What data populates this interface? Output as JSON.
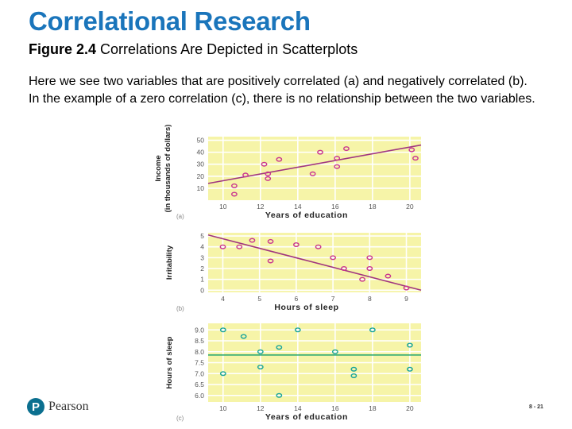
{
  "slide": {
    "title": "Correlational Research",
    "figure_label": "Figure 2.4",
    "figure_caption": "Correlations Are Depicted in Scatterplots",
    "description": "Here we see two variables that are positively correlated (a) and negatively correlated (b). In the example of a zero correlation (c), there is no relationship between the two variables.",
    "logo_text": "Pearson",
    "slide_number": "8 - 21"
  },
  "colors": {
    "title": "#1a75bb",
    "plot_bg": "#f6f4a8",
    "grid": "#ffffff",
    "marker_magenta": "#c9358f",
    "trend_magenta": "#a0357f",
    "marker_teal": "#1aa49b",
    "trend_green": "#1fa56f"
  },
  "chart_data": [
    {
      "type": "scatter",
      "panel_label": "(a)",
      "xlabel": "Years of education",
      "ylabel": "Income",
      "ylabel_sub": "(in thousands of dollars)",
      "xticks": [
        10,
        12,
        14,
        16,
        18,
        20
      ],
      "yticks": [
        10,
        20,
        30,
        40,
        50
      ],
      "xlim": [
        9.2,
        20.6
      ],
      "ylim": [
        0,
        53
      ],
      "points": [
        {
          "x": 10.6,
          "y": 5
        },
        {
          "x": 10.6,
          "y": 12
        },
        {
          "x": 11.2,
          "y": 21
        },
        {
          "x": 12.2,
          "y": 30
        },
        {
          "x": 12.4,
          "y": 22
        },
        {
          "x": 12.4,
          "y": 18
        },
        {
          "x": 13,
          "y": 34
        },
        {
          "x": 14.8,
          "y": 22
        },
        {
          "x": 15.2,
          "y": 40
        },
        {
          "x": 16.1,
          "y": 35
        },
        {
          "x": 16.1,
          "y": 28
        },
        {
          "x": 16.6,
          "y": 43
        },
        {
          "x": 20.1,
          "y": 42
        },
        {
          "x": 20.3,
          "y": 35
        }
      ],
      "trend": [
        [
          9.2,
          14
        ],
        [
          20.6,
          46
        ]
      ],
      "marker_color": "#c9358f",
      "trend_color": "#a0357f",
      "grid": true
    },
    {
      "type": "scatter",
      "panel_label": "(b)",
      "xlabel": "Hours of sleep",
      "ylabel": "Irritability",
      "xticks": [
        4,
        5,
        6,
        7,
        8,
        9
      ],
      "yticks": [
        0,
        1,
        2,
        3,
        4,
        5
      ],
      "xlim": [
        3.6,
        9.4
      ],
      "ylim": [
        -0.2,
        5.3
      ],
      "points": [
        {
          "x": 4,
          "y": 4
        },
        {
          "x": 4.45,
          "y": 4
        },
        {
          "x": 4.8,
          "y": 4.6
        },
        {
          "x": 5.3,
          "y": 4.5
        },
        {
          "x": 5.3,
          "y": 2.7
        },
        {
          "x": 6,
          "y": 4.2
        },
        {
          "x": 6.6,
          "y": 4
        },
        {
          "x": 7,
          "y": 3
        },
        {
          "x": 7.3,
          "y": 2
        },
        {
          "x": 8,
          "y": 3
        },
        {
          "x": 8,
          "y": 2
        },
        {
          "x": 7.8,
          "y": 1
        },
        {
          "x": 8.5,
          "y": 1.3
        },
        {
          "x": 9,
          "y": 0.2
        }
      ],
      "trend": [
        [
          3.6,
          5.1
        ],
        [
          9.4,
          0
        ]
      ],
      "marker_color": "#c9358f",
      "trend_color": "#a0357f",
      "grid": true
    },
    {
      "type": "scatter",
      "panel_label": "(c)",
      "xlabel": "Years of education",
      "ylabel": "Hours of sleep",
      "xticks": [
        10,
        12,
        14,
        16,
        18,
        20
      ],
      "ytick_labels": [
        "6.0",
        "6.5",
        "7.0",
        "7.5",
        "8.0",
        "8.5",
        "9.0"
      ],
      "yticks": [
        6.0,
        6.5,
        7.0,
        7.5,
        8.0,
        8.5,
        9.0
      ],
      "xlim": [
        9.2,
        20.6
      ],
      "ylim": [
        5.7,
        9.3
      ],
      "points": [
        {
          "x": 10,
          "y": 9
        },
        {
          "x": 10,
          "y": 7
        },
        {
          "x": 11.1,
          "y": 8.7
        },
        {
          "x": 12,
          "y": 8
        },
        {
          "x": 12,
          "y": 7.3
        },
        {
          "x": 13,
          "y": 8.2
        },
        {
          "x": 13,
          "y": 6
        },
        {
          "x": 14,
          "y": 9
        },
        {
          "x": 16,
          "y": 8
        },
        {
          "x": 17,
          "y": 7.2
        },
        {
          "x": 17,
          "y": 6.9
        },
        {
          "x": 18,
          "y": 9
        },
        {
          "x": 20,
          "y": 8.3
        },
        {
          "x": 20,
          "y": 7.2
        }
      ],
      "trend": [
        [
          9.2,
          7.85
        ],
        [
          20.6,
          7.85
        ]
      ],
      "marker_color": "#1aa49b",
      "trend_color": "#1fa56f",
      "grid": true
    }
  ]
}
